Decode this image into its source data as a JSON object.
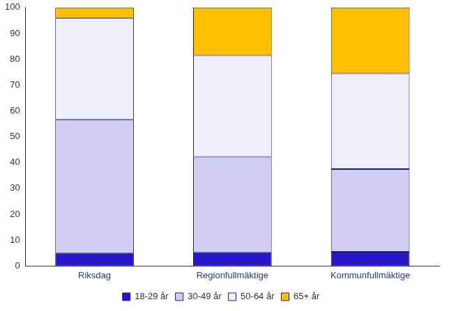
{
  "chart_data": {
    "type": "bar",
    "stacked": true,
    "categories": [
      "Riksdag",
      "Regionfullmäktige",
      "Kommunfullmäktige"
    ],
    "series": [
      {
        "name": "18-29 år",
        "color": "#2a16c9",
        "values": [
          5,
          5.3,
          5.5
        ]
      },
      {
        "name": "30-49 år",
        "color": "#d1cdf2",
        "values": [
          51.7,
          36.9,
          32
        ]
      },
      {
        "name": "50-64 år",
        "color": "#efeefb",
        "values": [
          39.3,
          39.3,
          37
        ]
      },
      {
        "name": "65+ år",
        "color": "#ffc000",
        "values": [
          4,
          18.5,
          25.5
        ]
      }
    ],
    "ylim": [
      0,
      100
    ],
    "yticks": [
      0,
      10,
      20,
      30,
      40,
      50,
      60,
      70,
      80,
      90,
      100
    ],
    "grid": false,
    "legend": "bottom"
  }
}
